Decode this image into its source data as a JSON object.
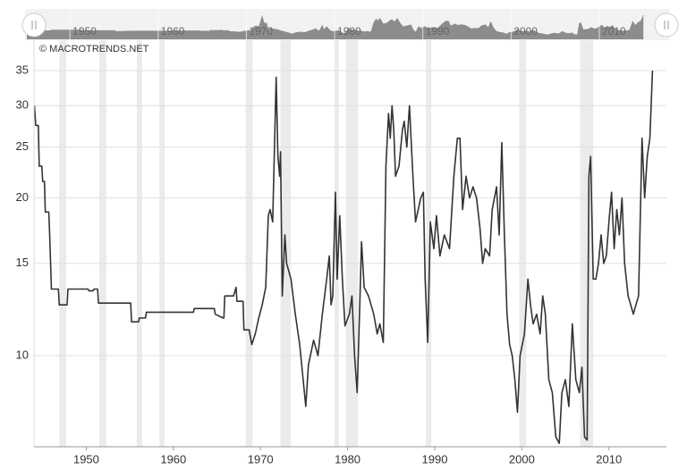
{
  "chart_data": {
    "type": "line",
    "credit": "© MACROTRENDS.NET",
    "log_scale": true,
    "grid": true,
    "color": "#333333",
    "recession_color": "#ebebeb",
    "xlim": [
      1944,
      2016.6
    ],
    "xticks": [
      1950,
      1960,
      1970,
      1980,
      1990,
      2000,
      2010
    ],
    "navigator_xticks": [
      1950,
      1960,
      1970,
      1980,
      1990,
      2000,
      2010
    ],
    "ylim": [
      6.7,
      40
    ],
    "yticks": [
      10,
      15,
      20,
      25,
      30,
      35
    ],
    "recessions": [
      [
        1946.9,
        1947.7
      ],
      [
        1951.5,
        1952.3
      ],
      [
        1955.8,
        1956.4
      ],
      [
        1958.4,
        1959.0
      ],
      [
        1968.3,
        1969.1
      ],
      [
        1972.3,
        1973.5
      ],
      [
        1978.5,
        1979.0
      ],
      [
        1979.8,
        1981.2
      ],
      [
        1989.0,
        1989.6
      ],
      [
        1999.7,
        2000.5
      ],
      [
        2006.7,
        2008.2
      ]
    ],
    "x": [
      1944.05,
      1944.2,
      1944.5,
      1944.6,
      1944.9,
      1945.0,
      1945.2,
      1945.3,
      1945.7,
      1945.8,
      1946.0,
      1946.8,
      1946.9,
      1947.8,
      1947.9,
      1950.2,
      1950.3,
      1950.8,
      1950.9,
      1951.3,
      1951.4,
      1955.1,
      1955.2,
      1956.0,
      1956.1,
      1956.8,
      1956.9,
      1962.3,
      1962.4,
      1964.7,
      1964.8,
      1965.7,
      1965.8,
      1965.9,
      1966.9,
      1967.2,
      1967.3,
      1968.0,
      1968.1,
      1968.7,
      1969.0,
      1969.4,
      1969.8,
      1970.2,
      1970.6,
      1970.9,
      1971.1,
      1971.4,
      1971.8,
      1972.0,
      1972.2,
      1972.3,
      1972.5,
      1972.8,
      1973.0,
      1973.5,
      1974.0,
      1974.5,
      1975.2,
      1975.5,
      1976.1,
      1976.6,
      1977.1,
      1977.6,
      1977.9,
      1978.1,
      1978.3,
      1978.6,
      1978.8,
      1979.1,
      1979.4,
      1979.7,
      1980.2,
      1980.5,
      1980.8,
      1981.1,
      1981.4,
      1981.6,
      1981.9,
      1982.4,
      1983.0,
      1983.4,
      1983.7,
      1984.1,
      1984.4,
      1984.7,
      1984.9,
      1985.1,
      1985.3,
      1985.5,
      1985.9,
      1986.3,
      1986.5,
      1986.8,
      1987.1,
      1987.5,
      1987.8,
      1988.4,
      1988.7,
      1988.9,
      1989.2,
      1989.5,
      1989.9,
      1990.2,
      1990.6,
      1991.1,
      1991.7,
      1992.2,
      1992.6,
      1992.9,
      1993.2,
      1993.6,
      1994.0,
      1994.4,
      1994.8,
      1995.2,
      1995.5,
      1995.8,
      1996.3,
      1996.6,
      1997.1,
      1997.4,
      1997.7,
      1998.0,
      1998.3,
      1998.6,
      1998.9,
      1999.2,
      1999.5,
      1999.8,
      2000.3,
      2000.7,
      2001.0,
      2001.3,
      2001.7,
      2002.1,
      2002.4,
      2002.7,
      2003.1,
      2003.5,
      2003.9,
      2004.3,
      2004.6,
      2005.0,
      2005.4,
      2005.8,
      2006.2,
      2006.6,
      2006.9,
      2007.2,
      2007.5,
      2007.7,
      2007.9,
      2008.2,
      2008.5,
      2008.8,
      2009.1,
      2009.4,
      2009.7,
      2010.0,
      2010.3,
      2010.6,
      2010.9,
      2011.2,
      2011.5,
      2011.8,
      2012.2,
      2012.5,
      2012.8,
      2013.1,
      2013.4,
      2013.8,
      2014.1,
      2014.4,
      2014.7,
      2015.0
    ],
    "values": [
      30,
      27.5,
      27.5,
      23,
      23,
      21.5,
      21.5,
      18.8,
      18.8,
      17,
      13.4,
      13.4,
      12.5,
      12.5,
      13.4,
      13.4,
      13.3,
      13.3,
      13.4,
      13.4,
      12.6,
      12.6,
      11.6,
      11.6,
      11.8,
      11.8,
      12.1,
      12.1,
      12.3,
      12.3,
      12.0,
      11.8,
      11.8,
      13.0,
      13.0,
      13.5,
      12.7,
      12.7,
      11.2,
      11.2,
      10.5,
      11.0,
      11.8,
      12.5,
      13.5,
      18.5,
      19,
      18,
      34,
      24,
      22,
      24.5,
      13,
      17,
      15,
      14,
      12,
      10.5,
      8.0,
      9.6,
      10.7,
      10,
      12,
      14,
      15.5,
      12.5,
      13,
      20.5,
      14,
      18.5,
      14,
      11.4,
      12,
      13,
      10,
      8.5,
      12.5,
      16.5,
      13.5,
      13,
      12,
      11,
      11.5,
      10.6,
      23,
      29,
      26,
      30,
      27,
      22,
      23,
      27,
      28,
      25,
      30,
      22,
      18,
      20,
      20.5,
      14,
      10.6,
      18,
      16,
      18.5,
      15.5,
      17,
      16,
      22,
      26,
      26,
      19,
      22,
      20,
      21,
      20,
      17.5,
      15,
      16,
      15.5,
      19,
      21,
      17,
      25.5,
      17,
      12,
      10.5,
      10,
      9,
      7.8,
      10,
      11,
      14,
      12.5,
      11.5,
      12,
      11,
      13,
      12,
      9,
      8.5,
      7,
      6.8,
      8.5,
      9,
      8,
      11.5,
      9,
      8.5,
      9.5,
      7.0,
      6.9,
      22,
      24,
      14,
      14,
      15,
      17,
      15,
      15.5,
      18,
      20.5,
      16,
      19,
      17,
      20,
      15,
      13,
      12.5,
      12,
      12.5,
      13,
      26,
      20,
      24,
      26,
      35
    ]
  }
}
